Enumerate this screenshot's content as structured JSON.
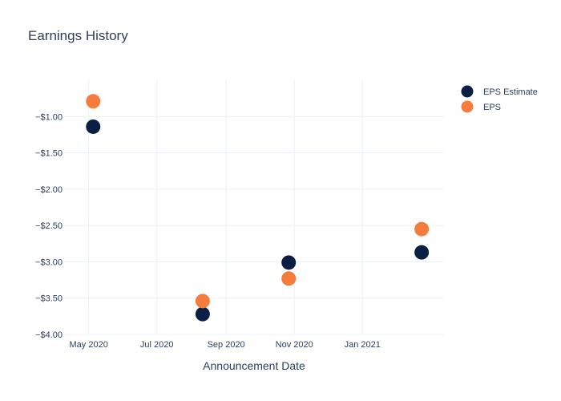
{
  "chart_data": {
    "type": "scatter",
    "title": "Earnings History",
    "xlabel": "Announcement Date",
    "ylabel": "",
    "x_axis_type": "date",
    "xlim": [
      "2020-04-09",
      "2021-03-15"
    ],
    "ylim": [
      -4.0,
      -0.5
    ],
    "x_ticks": [
      {
        "value": "2020-05-01",
        "label": "May 2020"
      },
      {
        "value": "2020-07-01",
        "label": "Jul 2020"
      },
      {
        "value": "2020-09-01",
        "label": "Sep 2020"
      },
      {
        "value": "2020-11-01",
        "label": "Nov 2020"
      },
      {
        "value": "2021-01-01",
        "label": "Jan 2021"
      }
    ],
    "y_ticks": [
      {
        "value": -1.0,
        "label": "−$1.00"
      },
      {
        "value": -1.5,
        "label": "−$1.50"
      },
      {
        "value": -2.0,
        "label": "−$2.00"
      },
      {
        "value": -2.5,
        "label": "−$2.50"
      },
      {
        "value": -3.0,
        "label": "−$3.00"
      },
      {
        "value": -3.5,
        "label": "−$3.50"
      },
      {
        "value": -4.0,
        "label": "−$4.00"
      }
    ],
    "grid": true,
    "legend_position": "top-right",
    "series": [
      {
        "name": "EPS Estimate",
        "color": "#0b1f44",
        "points": [
          {
            "x": "2020-05-05",
            "y": -1.14
          },
          {
            "x": "2020-08-11",
            "y": -3.72
          },
          {
            "x": "2020-10-27",
            "y": -3.01
          },
          {
            "x": "2021-02-23",
            "y": -2.87
          }
        ]
      },
      {
        "name": "EPS",
        "color": "#f47c3c",
        "points": [
          {
            "x": "2020-05-05",
            "y": -0.79
          },
          {
            "x": "2020-08-11",
            "y": -3.54
          },
          {
            "x": "2020-10-27",
            "y": -3.23
          },
          {
            "x": "2021-02-23",
            "y": -2.55
          }
        ]
      }
    ]
  }
}
